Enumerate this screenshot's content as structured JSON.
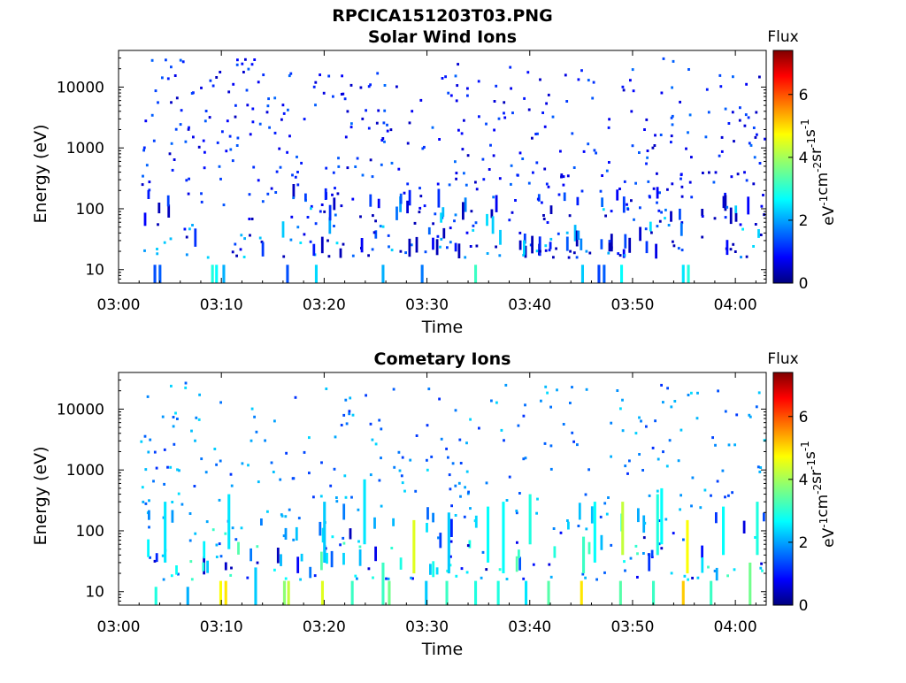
{
  "figure_title": "RPCICA151203T03.PNG",
  "chart_data": [
    {
      "type": "heatmap",
      "title": "Solar Wind Ions",
      "xlabel": "Time",
      "ylabel": "Energy (eV)",
      "x_ticks": [
        "03:00",
        "03:10",
        "03:20",
        "03:30",
        "03:40",
        "03:50",
        "04:00"
      ],
      "x_range_min": [
        0,
        63
      ],
      "y_scale": "log",
      "y_ticks": [
        "10",
        "100",
        "1000",
        "10000"
      ],
      "y_range": [
        6,
        40000
      ],
      "colorbar": {
        "title": "Flux",
        "label": "eV-1cm-2sr-1s-1",
        "ticks": [
          "0",
          "2",
          "4",
          "6"
        ],
        "range": [
          0,
          7.4
        ],
        "colormap": "jet"
      },
      "grid": false,
      "seed": 7,
      "scatter": {
        "count": 620,
        "low_density": 0.55,
        "flux_mean": 1.1
      },
      "streaks": [
        {
          "t": 3.4,
          "e_lo": 6,
          "e_hi": 12,
          "flux": 1.5
        },
        {
          "t": 3.9,
          "e_lo": 6,
          "e_hi": 12,
          "flux": 1.6
        },
        {
          "t": 9.0,
          "e_lo": 6,
          "e_hi": 12,
          "flux": 3.0
        },
        {
          "t": 9.4,
          "e_lo": 6,
          "e_hi": 12,
          "flux": 2.8
        },
        {
          "t": 10.1,
          "e_lo": 6,
          "e_hi": 12,
          "flux": 2.2
        },
        {
          "t": 16.3,
          "e_lo": 6,
          "e_hi": 12,
          "flux": 1.5
        },
        {
          "t": 19.1,
          "e_lo": 6,
          "e_hi": 12,
          "flux": 2.5
        },
        {
          "t": 25.6,
          "e_lo": 6,
          "e_hi": 12,
          "flux": 2.2
        },
        {
          "t": 29.4,
          "e_lo": 6,
          "e_hi": 12,
          "flux": 1.8
        },
        {
          "t": 34.6,
          "e_lo": 6,
          "e_hi": 12,
          "flux": 3.2
        },
        {
          "t": 45.0,
          "e_lo": 6,
          "e_hi": 12,
          "flux": 2.4
        },
        {
          "t": 46.6,
          "e_lo": 6,
          "e_hi": 12,
          "flux": 1.4
        },
        {
          "t": 47.1,
          "e_lo": 6,
          "e_hi": 12,
          "flux": 1.6
        },
        {
          "t": 48.8,
          "e_lo": 6,
          "e_hi": 12,
          "flux": 2.8
        },
        {
          "t": 54.8,
          "e_lo": 6,
          "e_hi": 12,
          "flux": 2.6
        },
        {
          "t": 55.3,
          "e_lo": 6,
          "e_hi": 12,
          "flux": 3.0
        }
      ]
    },
    {
      "type": "heatmap",
      "title": "Cometary Ions",
      "xlabel": "Time",
      "ylabel": "Energy (eV)",
      "x_ticks": [
        "03:00",
        "03:10",
        "03:20",
        "03:30",
        "03:40",
        "03:50",
        "04:00"
      ],
      "x_range_min": [
        0,
        63
      ],
      "y_scale": "log",
      "y_ticks": [
        "10",
        "100",
        "1000",
        "10000"
      ],
      "y_range": [
        6,
        40000
      ],
      "colorbar": {
        "title": "Flux",
        "label": "eV-1cm-2sr-1s-1",
        "ticks": [
          "0",
          "2",
          "4",
          "6"
        ],
        "range": [
          0,
          7.4
        ],
        "colormap": "jet"
      },
      "grid": false,
      "seed": 23,
      "scatter": {
        "count": 420,
        "low_density": 0.75,
        "flux_mean": 1.9
      },
      "streaks": [
        {
          "t": 3.5,
          "e_lo": 6,
          "e_hi": 12,
          "flux": 3.0
        },
        {
          "t": 4.4,
          "e_lo": 30,
          "e_hi": 300,
          "flux": 2.6
        },
        {
          "t": 6.6,
          "e_lo": 6,
          "e_hi": 12,
          "flux": 2.2
        },
        {
          "t": 9.8,
          "e_lo": 6,
          "e_hi": 15,
          "flux": 4.6
        },
        {
          "t": 10.3,
          "e_lo": 6,
          "e_hi": 15,
          "flux": 4.8
        },
        {
          "t": 10.6,
          "e_lo": 50,
          "e_hi": 400,
          "flux": 2.6
        },
        {
          "t": 13.2,
          "e_lo": 6,
          "e_hi": 25,
          "flux": 2.4
        },
        {
          "t": 16.0,
          "e_lo": 6,
          "e_hi": 15,
          "flux": 3.8
        },
        {
          "t": 16.4,
          "e_lo": 6,
          "e_hi": 15,
          "flux": 4.2
        },
        {
          "t": 19.7,
          "e_lo": 6,
          "e_hi": 15,
          "flux": 4.4
        },
        {
          "t": 19.9,
          "e_lo": 30,
          "e_hi": 300,
          "flux": 2.4
        },
        {
          "t": 22.6,
          "e_lo": 6,
          "e_hi": 15,
          "flux": 3.2
        },
        {
          "t": 23.8,
          "e_lo": 60,
          "e_hi": 700,
          "flux": 2.6
        },
        {
          "t": 25.6,
          "e_lo": 6,
          "e_hi": 30,
          "flux": 3.2
        },
        {
          "t": 26.2,
          "e_lo": 6,
          "e_hi": 15,
          "flux": 3.6
        },
        {
          "t": 28.6,
          "e_lo": 20,
          "e_hi": 150,
          "flux": 4.4
        },
        {
          "t": 29.8,
          "e_lo": 6,
          "e_hi": 15,
          "flux": 2.4
        },
        {
          "t": 31.8,
          "e_lo": 6,
          "e_hi": 15,
          "flux": 3.2
        },
        {
          "t": 32.0,
          "e_lo": 20,
          "e_hi": 200,
          "flux": 2.4
        },
        {
          "t": 34.6,
          "e_lo": 6,
          "e_hi": 15,
          "flux": 3.0
        },
        {
          "t": 35.8,
          "e_lo": 30,
          "e_hi": 250,
          "flux": 2.8
        },
        {
          "t": 36.8,
          "e_lo": 6,
          "e_hi": 15,
          "flux": 3.0
        },
        {
          "t": 37.3,
          "e_lo": 20,
          "e_hi": 300,
          "flux": 2.8
        },
        {
          "t": 39.5,
          "e_lo": 6,
          "e_hi": 15,
          "flux": 2.6
        },
        {
          "t": 39.9,
          "e_lo": 60,
          "e_hi": 400,
          "flux": 3.0
        },
        {
          "t": 41.7,
          "e_lo": 6,
          "e_hi": 15,
          "flux": 3.4
        },
        {
          "t": 44.9,
          "e_lo": 6,
          "e_hi": 15,
          "flux": 4.8
        },
        {
          "t": 45.1,
          "e_lo": 20,
          "e_hi": 80,
          "flux": 3.2
        },
        {
          "t": 46.2,
          "e_lo": 30,
          "e_hi": 300,
          "flux": 2.8
        },
        {
          "t": 48.7,
          "e_lo": 6,
          "e_hi": 15,
          "flux": 3.4
        },
        {
          "t": 48.9,
          "e_lo": 40,
          "e_hi": 300,
          "flux": 4.2
        },
        {
          "t": 51.9,
          "e_lo": 6,
          "e_hi": 15,
          "flux": 3.2
        },
        {
          "t": 52.3,
          "e_lo": 40,
          "e_hi": 400,
          "flux": 3.0
        },
        {
          "t": 52.7,
          "e_lo": 60,
          "e_hi": 500,
          "flux": 2.8
        },
        {
          "t": 54.8,
          "e_lo": 6,
          "e_hi": 15,
          "flux": 5.0
        },
        {
          "t": 55.2,
          "e_lo": 20,
          "e_hi": 150,
          "flux": 4.6
        },
        {
          "t": 57.5,
          "e_lo": 6,
          "e_hi": 15,
          "flux": 3.2
        },
        {
          "t": 58.7,
          "e_lo": 40,
          "e_hi": 250,
          "flux": 2.8
        },
        {
          "t": 61.3,
          "e_lo": 6,
          "e_hi": 30,
          "flux": 3.6
        },
        {
          "t": 62.0,
          "e_lo": 40,
          "e_hi": 300,
          "flux": 3.0
        }
      ]
    }
  ]
}
